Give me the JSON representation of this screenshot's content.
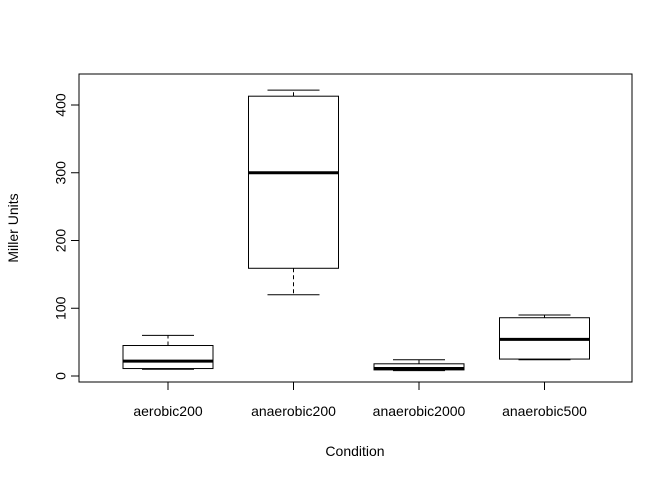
{
  "chart_data": {
    "type": "box",
    "title": "",
    "xlabel": "Condition",
    "ylabel": "Miller Units",
    "ylim": [
      -12,
      432
    ],
    "yticks": [
      0,
      100,
      200,
      300,
      400
    ],
    "grid": false,
    "categories": [
      "aerobic200",
      "anaerobic200",
      "anaerobic2000",
      "anaerobic500"
    ],
    "boxes": [
      {
        "category": "aerobic200",
        "whisker_low": 10,
        "q1": 11,
        "median": 22,
        "q3": 45,
        "whisker_high": 60
      },
      {
        "category": "anaerobic200",
        "whisker_low": 120,
        "q1": 159,
        "median": 300,
        "q3": 413,
        "whisker_high": 422
      },
      {
        "category": "anaerobic2000",
        "whisker_low": 8,
        "q1": 9,
        "median": 11,
        "q3": 18,
        "whisker_high": 24
      },
      {
        "category": "anaerobic500",
        "whisker_low": 24,
        "q1": 25,
        "median": 54,
        "q3": 86,
        "whisker_high": 90
      }
    ]
  }
}
